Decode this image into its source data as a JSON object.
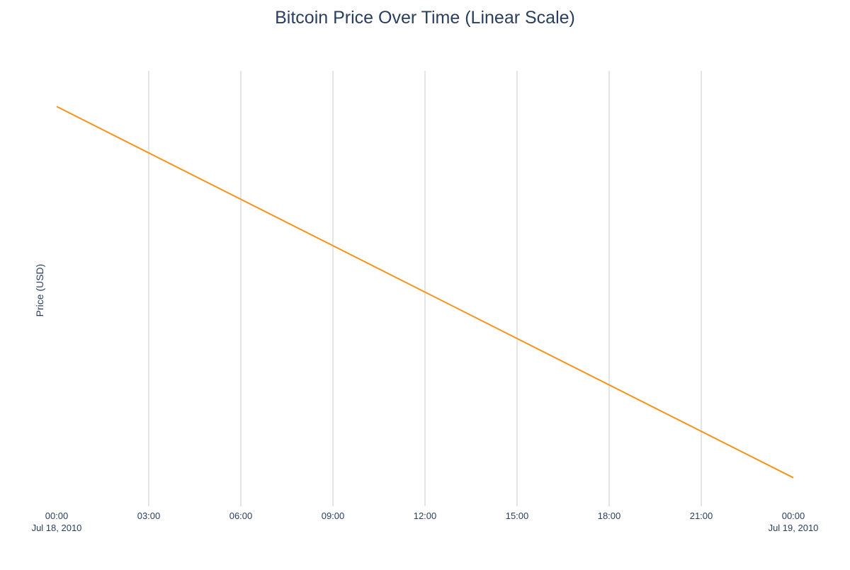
{
  "chart_data": {
    "type": "line",
    "title": "Bitcoin Price Over Time (Linear Scale)",
    "xlabel": "",
    "ylabel": "Price (USD)",
    "x": [
      "2010-07-18 00:00",
      "2010-07-19 00:00"
    ],
    "series": [
      {
        "values": [
          0.086,
          0.0808
        ],
        "color": "#f7931a"
      }
    ],
    "xlim": [
      "2010-07-18 00:00",
      "2010-07-19 00:00"
    ],
    "ylim": [
      0.0804,
      0.0865
    ],
    "x_ticks": [
      {
        "label": "00:00",
        "sublabel": "Jul 18, 2010"
      },
      {
        "label": "03:00",
        "sublabel": ""
      },
      {
        "label": "06:00",
        "sublabel": ""
      },
      {
        "label": "09:00",
        "sublabel": ""
      },
      {
        "label": "12:00",
        "sublabel": ""
      },
      {
        "label": "15:00",
        "sublabel": ""
      },
      {
        "label": "18:00",
        "sublabel": ""
      },
      {
        "label": "21:00",
        "sublabel": ""
      },
      {
        "label": "00:00",
        "sublabel": "Jul 19, 2010"
      }
    ],
    "y_tick_labels_shown": false,
    "grid": {
      "x": true,
      "y": false
    },
    "legend": "none"
  }
}
